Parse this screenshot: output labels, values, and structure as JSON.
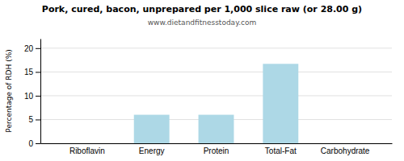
{
  "chart_data": {
    "type": "bar",
    "title": "Pork, cured, bacon, unprepared per 1,000 slice raw (or 28.00 g)",
    "subtitle": "www.dietandfitnesstoday.com",
    "categories": [
      "Riboflavin",
      "Energy",
      "Protein",
      "Total-Fat",
      "Carbohydrate"
    ],
    "values": [
      0.0,
      6.0,
      6.0,
      16.7,
      0.0
    ],
    "color": "#ADD8E6",
    "ylabel": "Percentage of RDH (%)",
    "ylim": [
      0,
      22
    ],
    "yticks": [
      0,
      5,
      10,
      15,
      20
    ],
    "grid": true
  }
}
